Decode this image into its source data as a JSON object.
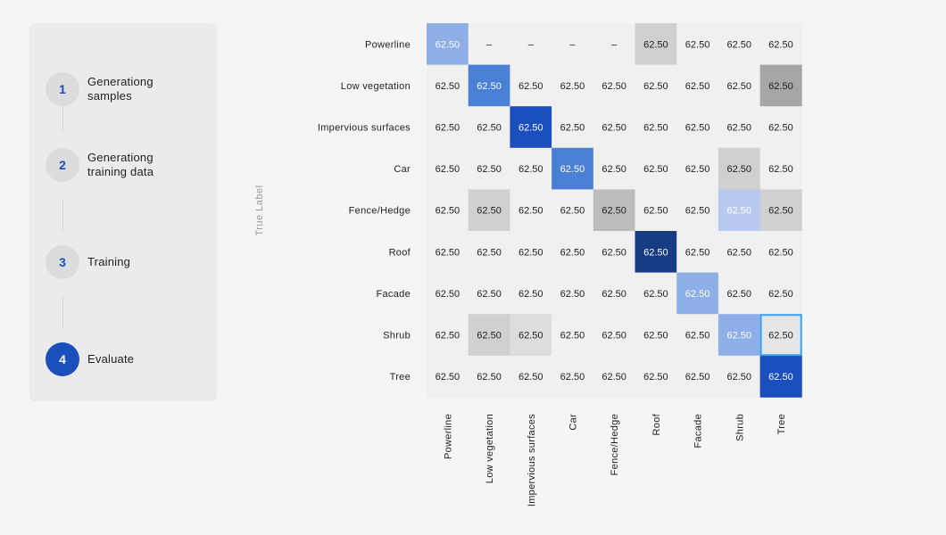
{
  "stepper": {
    "steps": [
      {
        "number": "1",
        "label": "Generationg\nsamples",
        "active": false
      },
      {
        "number": "2",
        "label": "Generationg\ntraining data",
        "active": false
      },
      {
        "number": "3",
        "label": "Training",
        "active": false
      },
      {
        "number": "4",
        "label": "Evaluate",
        "active": true
      }
    ]
  },
  "chart_data": {
    "type": "heatmap",
    "title": "",
    "ylabel": "True Label",
    "xlabel": "",
    "rows": [
      "Powerline",
      "Low vegetation",
      "Impervious surfaces",
      "Car",
      "Fence/Hedge",
      "Roof",
      "Facade",
      "Shrub",
      "Tree"
    ],
    "columns": [
      "Powerline",
      "Low vegetation",
      "Impervious surfaces",
      "Car",
      "Fence/Hedge",
      "Roof",
      "Facade",
      "Shrub",
      "Tree"
    ],
    "values": [
      [
        "62.50",
        "–",
        "–",
        "–",
        "–",
        "62.50",
        "62.50",
        "62.50",
        "62.50"
      ],
      [
        "62.50",
        "62.50",
        "62.50",
        "62.50",
        "62.50",
        "62.50",
        "62.50",
        "62.50",
        "62.50"
      ],
      [
        "62.50",
        "62.50",
        "62.50",
        "62.50",
        "62.50",
        "62.50",
        "62.50",
        "62.50",
        "62.50"
      ],
      [
        "62.50",
        "62.50",
        "62.50",
        "62.50",
        "62.50",
        "62.50",
        "62.50",
        "62.50",
        "62.50"
      ],
      [
        "62.50",
        "62.50",
        "62.50",
        "62.50",
        "62.50",
        "62.50",
        "62.50",
        "62.50",
        "62.50"
      ],
      [
        "62.50",
        "62.50",
        "62.50",
        "62.50",
        "62.50",
        "62.50",
        "62.50",
        "62.50",
        "62.50"
      ],
      [
        "62.50",
        "62.50",
        "62.50",
        "62.50",
        "62.50",
        "62.50",
        "62.50",
        "62.50",
        "62.50"
      ],
      [
        "62.50",
        "62.50",
        "62.50",
        "62.50",
        "62.50",
        "62.50",
        "62.50",
        "62.50",
        "62.50"
      ],
      [
        "62.50",
        "62.50",
        "62.50",
        "62.50",
        "62.50",
        "62.50",
        "62.50",
        "62.50",
        "62.50"
      ]
    ],
    "cell_colors": [
      [
        "#8eaee8",
        "#f0f0f0",
        "#f0f0f0",
        "#f0f0f0",
        "#f0f0f0",
        "#d0d0d0",
        "#f0f0f0",
        "#f0f0f0",
        "#f0f0f0"
      ],
      [
        "#f0f0f0",
        "#4a7fd6",
        "#f0f0f0",
        "#f0f0f0",
        "#f0f0f0",
        "#f0f0f0",
        "#f0f0f0",
        "#f0f0f0",
        "#a6a6a6"
      ],
      [
        "#f0f0f0",
        "#f0f0f0",
        "#1b4fbd",
        "#f0f0f0",
        "#f0f0f0",
        "#f0f0f0",
        "#f0f0f0",
        "#f0f0f0",
        "#f0f0f0"
      ],
      [
        "#f0f0f0",
        "#f0f0f0",
        "#f0f0f0",
        "#4a7fd6",
        "#f0f0f0",
        "#f0f0f0",
        "#f0f0f0",
        "#d0d0d0",
        "#f0f0f0"
      ],
      [
        "#f0f0f0",
        "#d0d0d0",
        "#f0f0f0",
        "#f0f0f0",
        "#bcbcbc",
        "#f0f0f0",
        "#f0f0f0",
        "#b7c9ef",
        "#d0d0d0"
      ],
      [
        "#f0f0f0",
        "#f0f0f0",
        "#f0f0f0",
        "#f0f0f0",
        "#f0f0f0",
        "#153b82",
        "#f0f0f0",
        "#f0f0f0",
        "#f0f0f0"
      ],
      [
        "#f0f0f0",
        "#f0f0f0",
        "#f0f0f0",
        "#f0f0f0",
        "#f0f0f0",
        "#f0f0f0",
        "#8eaee8",
        "#f0f0f0",
        "#f0f0f0"
      ],
      [
        "#f0f0f0",
        "#d0d0d0",
        "#dddddd",
        "#f0f0f0",
        "#f0f0f0",
        "#f0f0f0",
        "#f0f0f0",
        "#8eaee8",
        "#e6e6e6"
      ],
      [
        "#f0f0f0",
        "#f0f0f0",
        "#f0f0f0",
        "#f0f0f0",
        "#f0f0f0",
        "#f0f0f0",
        "#f0f0f0",
        "#f0f0f0",
        "#1b4fbd"
      ]
    ],
    "selected_cell": {
      "row": 7,
      "column": 8
    },
    "highlight_color": "#3aa0f0",
    "grid": false,
    "legend": "none"
  }
}
